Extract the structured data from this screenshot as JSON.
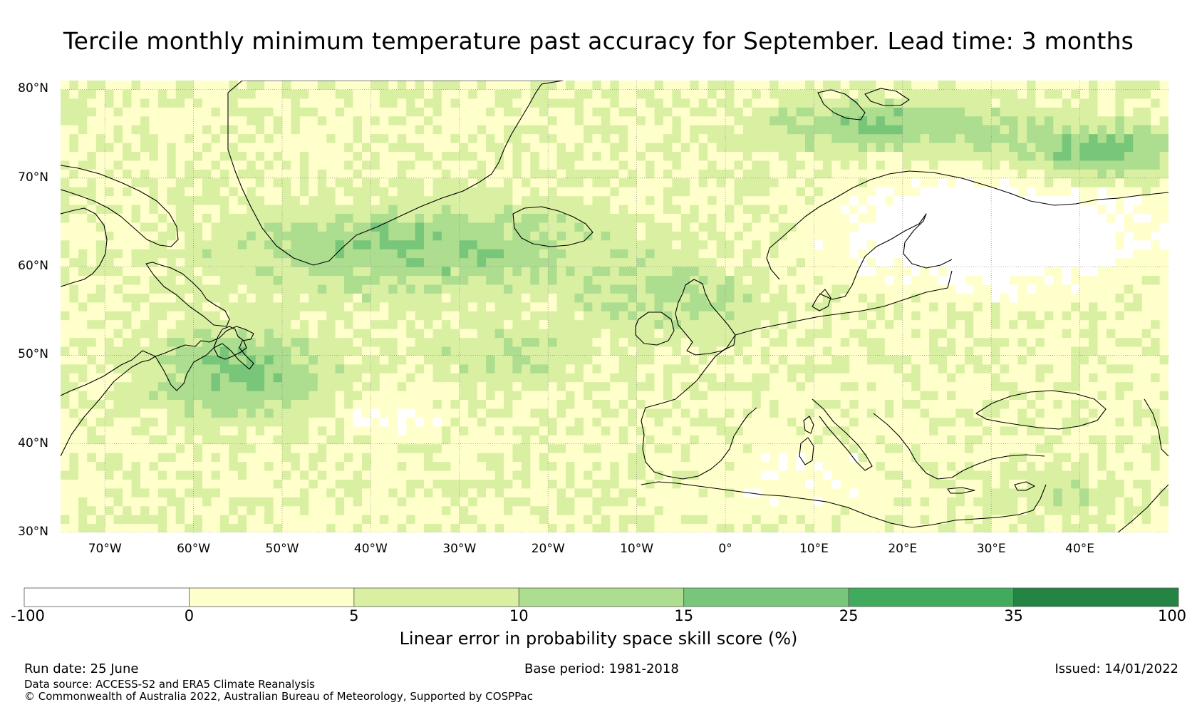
{
  "title": "Tercile monthly minimum temperature past accuracy for September. Lead time: 3 months",
  "map": {
    "projection": "plate-carree",
    "lon_range": [
      -75,
      50
    ],
    "lat_range": [
      30,
      81
    ],
    "lat_labels": [
      "80°N",
      "70°N",
      "60°N",
      "50°N",
      "40°N",
      "30°N"
    ],
    "lat_values": [
      80,
      70,
      60,
      50,
      40,
      30
    ],
    "lon_labels": [
      "70°W",
      "60°W",
      "50°W",
      "40°W",
      "30°W",
      "20°W",
      "10°W",
      "0°",
      "10°E",
      "20°E",
      "30°E",
      "40°E"
    ],
    "lon_values": [
      -70,
      -60,
      -50,
      -40,
      -30,
      -20,
      -10,
      0,
      10,
      20,
      30,
      40
    ],
    "grid": "dotted",
    "coastline_color": "#000000"
  },
  "colorbar": {
    "bounds_labels": [
      "-100",
      "0",
      "5",
      "10",
      "15",
      "25",
      "35",
      "100"
    ],
    "colors": [
      "#ffffff",
      "#ffffcc",
      "#d9f0a3",
      "#addd8e",
      "#78c679",
      "#41ab5d",
      "#238443"
    ],
    "label": "Linear error in probability space skill score (%)"
  },
  "footer": {
    "run_date": "Run date: 25 June",
    "base_period": "Base period: 1981-2018",
    "issued": "Issued: 14/01/2022",
    "data_source": "Data source: ACCESS-S2 and ERA5 Climate Reanalysis",
    "copyright": "© Commonwealth of Australia 2022, Australian Bureau of Meteorology, Supported by COSPPac"
  }
}
